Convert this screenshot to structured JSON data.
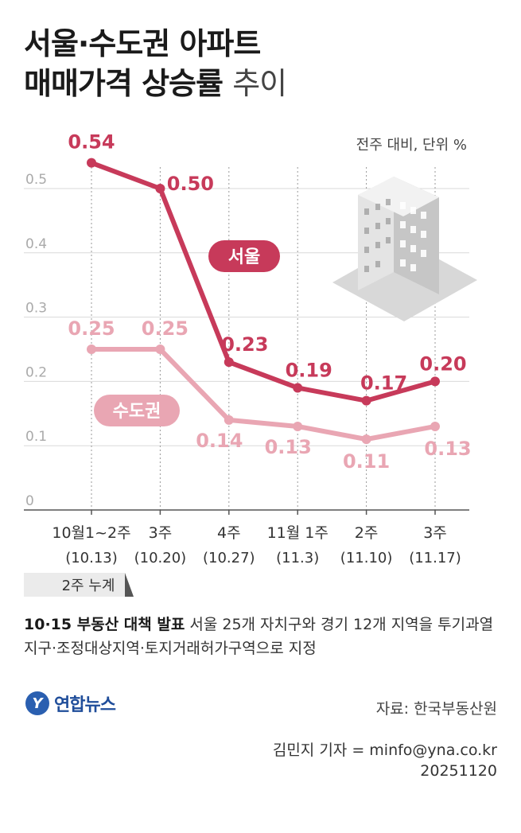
{
  "title": {
    "line1": "서울·수도권 아파트",
    "line2_bold": "매매가격 상승률",
    "line2_light": "추이"
  },
  "unit_label": "전주 대비, 단위 %",
  "chart_data": {
    "type": "line",
    "categories": [
      {
        "label": "10월1~2주",
        "date": "(10.13)"
      },
      {
        "label": "3주",
        "date": "(10.20)"
      },
      {
        "label": "4주",
        "date": "(10.27)"
      },
      {
        "label": "11월 1주",
        "date": "(11.3)"
      },
      {
        "label": "2주",
        "date": "(11.10)"
      },
      {
        "label": "3주",
        "date": "(11.17)"
      }
    ],
    "cumulative_note": "2주 누계",
    "yticks": [
      "0",
      "0.1",
      "0.2",
      "0.3",
      "0.4",
      "0.5"
    ],
    "ylim": [
      0,
      0.5
    ],
    "grid": true,
    "series": [
      {
        "name": "서울",
        "values": [
          0.54,
          0.5,
          0.23,
          0.19,
          0.17,
          0.2
        ],
        "labels": [
          "0.54",
          "0.50",
          "0.23",
          "0.19",
          "0.17",
          "0.20"
        ],
        "color": "#c73a5a"
      },
      {
        "name": "수도권",
        "values": [
          0.25,
          0.25,
          0.14,
          0.13,
          0.11,
          0.13
        ],
        "labels": [
          "0.25",
          "0.25",
          "0.14",
          "0.13",
          "0.11",
          "0.13"
        ],
        "color": "#e9a6b3"
      }
    ]
  },
  "note": {
    "bold": "10·15 부동산 대책 발표",
    "text": " 서울 25개 자치구와 경기 12개 지역을 투기과열지구·조정대상지역·토지거래허가구역으로 지정"
  },
  "logo": {
    "mark": "Y",
    "text": "연합뉴스"
  },
  "source": "자료: 한국부동산원",
  "credit": {
    "reporter": "김민지 기자 = minfo@yna.co.kr",
    "date": "20251120"
  }
}
